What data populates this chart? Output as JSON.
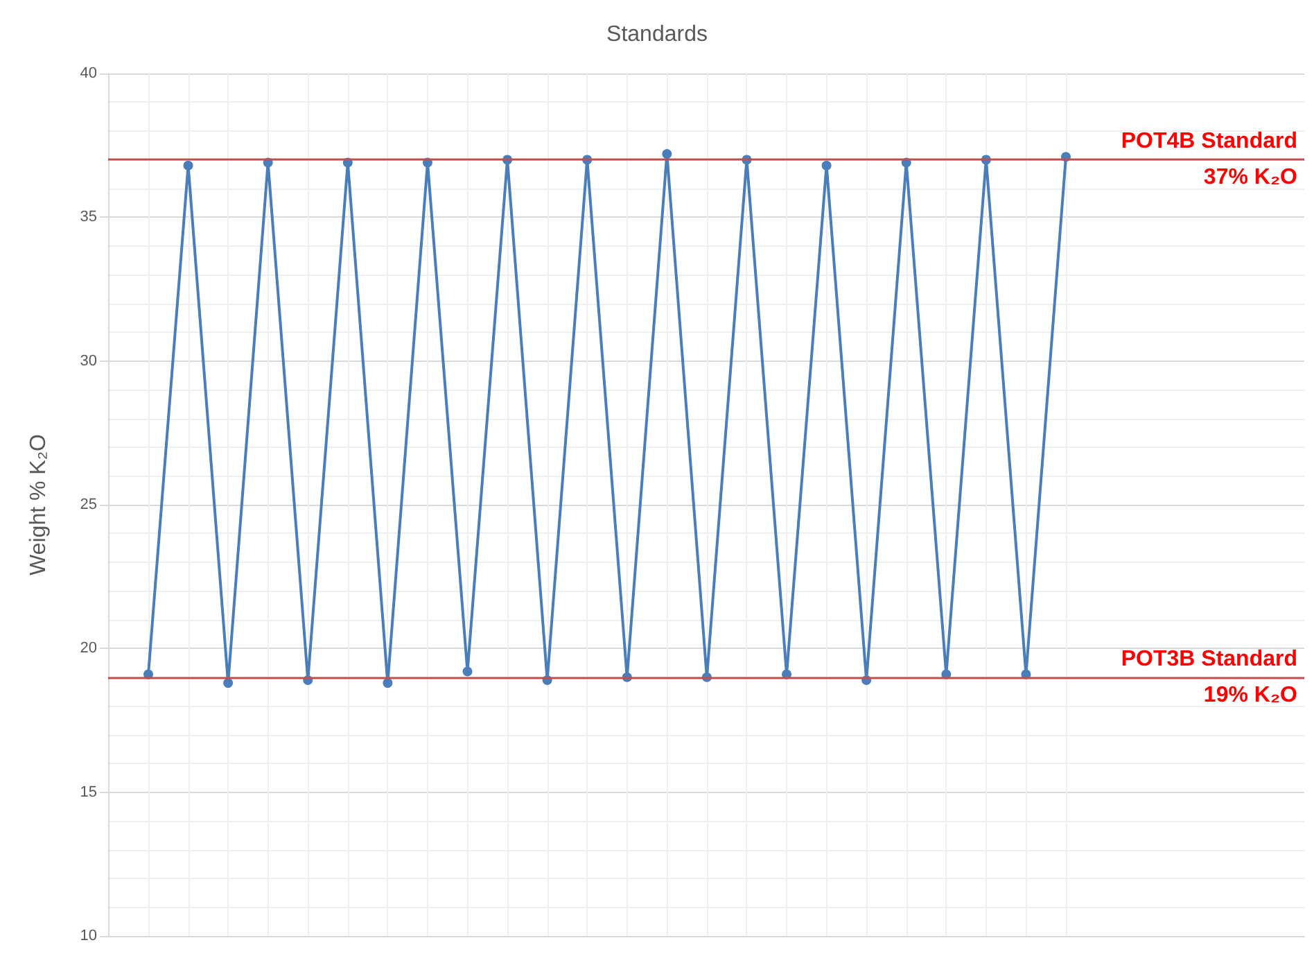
{
  "chart_data": {
    "type": "line",
    "title": "Standards",
    "ylabel": "Weight % K₂O",
    "categories": [
      null,
      null,
      null,
      null,
      null,
      null,
      null,
      null,
      null,
      null,
      null,
      null,
      null,
      null,
      null,
      null,
      null,
      null,
      null,
      null,
      null,
      null,
      null,
      null
    ],
    "series": [
      {
        "color": "#4a7ebb",
        "values": [
          19.1,
          36.8,
          18.8,
          36.9,
          18.9,
          36.9,
          18.8,
          36.9,
          19.2,
          37.0,
          18.9,
          37.0,
          19.0,
          37.2,
          19.0,
          37.0,
          19.1,
          36.8,
          18.9,
          36.9,
          19.1,
          37.0,
          19.1,
          37.1
        ]
      }
    ],
    "ylim": [
      10,
      40
    ],
    "yticks": [
      10,
      15,
      20,
      25,
      30,
      35,
      40
    ],
    "tick_labels": "y",
    "grid": true,
    "marker": "circle",
    "line_style": "solid",
    "ref_lines": [
      {
        "axis": "y",
        "value": 37,
        "label": "POT4B Standard\n37% K₂O",
        "color": "#c0504d"
      },
      {
        "axis": "y",
        "value": 19,
        "label": "POT3B Standard\n19% K₂O",
        "color": "#c0504d"
      }
    ]
  }
}
